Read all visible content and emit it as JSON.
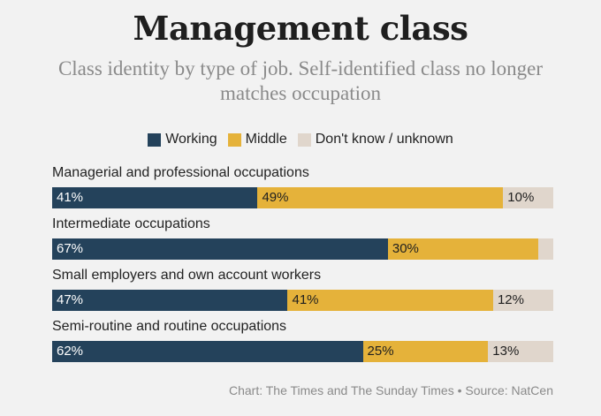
{
  "title": "Management class",
  "subtitle": "Class identity by type of job. Self-identified class no longer matches occupation",
  "legend": [
    {
      "label": "Working",
      "color": "#24425b"
    },
    {
      "label": "Middle",
      "color": "#e5b23a"
    },
    {
      "label": "Don't know / unknown",
      "color": "#e0d6cc"
    }
  ],
  "source": "Chart: The Times and The Sunday Times • Source: NatCen",
  "chart_data": {
    "type": "bar",
    "orientation": "horizontal",
    "stacked": true,
    "unit": "%",
    "categories": [
      "Managerial and professional occupations",
      "Intermediate occupations",
      "Small employers and own account workers",
      "Semi-routine and routine occupations"
    ],
    "series": [
      {
        "name": "Working",
        "values": [
          41,
          67,
          47,
          62
        ],
        "labels": [
          "41%",
          "67%",
          "47%",
          "62%"
        ]
      },
      {
        "name": "Middle",
        "values": [
          49,
          30,
          41,
          25
        ],
        "labels": [
          "49%",
          "30%",
          "41%",
          "25%"
        ]
      },
      {
        "name": "Don't know / unknown",
        "values": [
          10,
          3,
          12,
          13
        ],
        "labels": [
          "10%",
          "",
          "12%",
          "13%"
        ]
      }
    ],
    "xlim": [
      0,
      100
    ]
  }
}
